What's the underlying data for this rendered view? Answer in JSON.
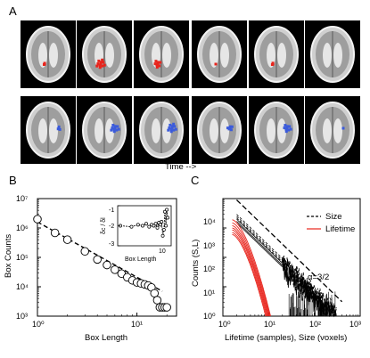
{
  "panel_labels": {
    "a": "A",
    "b": "B",
    "c": "C"
  },
  "time_caption": "Time -->",
  "brain_grid": {
    "rows": [
      {
        "color": "#e8241c",
        "blob_sizes": [
          0.18,
          0.75,
          0.6,
          0.05,
          0.2,
          0.0
        ]
      },
      {
        "color": "#3b5bdb",
        "blob_sizes": [
          0.3,
          0.7,
          0.75,
          0.45,
          0.65,
          0.1
        ]
      }
    ]
  },
  "chart_data": [
    {
      "type": "scatter",
      "panel": "B",
      "xlabel": "Box Length",
      "ylabel": "Box Counts",
      "xscale": "log",
      "yscale": "log",
      "xlim": [
        1,
        25
      ],
      "ylim": [
        1000,
        10000000
      ],
      "x_ticks": [
        "10⁰",
        "10¹"
      ],
      "y_ticks": [
        "10³",
        "10⁴",
        "10⁵",
        "10⁶",
        "10⁷"
      ],
      "series": [
        {
          "marker": "open-circle",
          "x": [
            1,
            1.5,
            2,
            3,
            4,
            5,
            6,
            7,
            8,
            9,
            10,
            11,
            12,
            13,
            14,
            15,
            16,
            17,
            18,
            19,
            20
          ],
          "y": [
            2000000,
            680000,
            400000,
            160000,
            85000,
            55000,
            38000,
            28000,
            21000,
            16500,
            14000,
            13000,
            12000,
            11000,
            9500,
            6000,
            3500,
            2000,
            2000,
            2000,
            2000
          ]
        },
        {
          "style": "dashed-fit",
          "x": [
            1,
            18
          ],
          "y": [
            1600000,
            7000
          ]
        }
      ],
      "inset": {
        "xlabel": "Box Length",
        "ylabel": "δc / δl",
        "y_ticks": [
          "-1",
          "-2",
          "-3"
        ],
        "x_ticks": [
          "10"
        ],
        "ylim": [
          -3,
          -1
        ],
        "series": [
          {
            "x": [
              1,
              2,
              3,
              4,
              5,
              6,
              7,
              8,
              9,
              10,
              11,
              12,
              13,
              14,
              15,
              16,
              17,
              18,
              19
            ],
            "y": [
              -2.0,
              -2.05,
              -1.95,
              -2.0,
              -1.9,
              -2.05,
              -1.95,
              -2.0,
              -1.9,
              -2.1,
              -1.85,
              -1.95,
              -1.8,
              -2.5,
              -2.2,
              -1.3,
              -2.0,
              -1.2,
              -1.6
            ]
          }
        ]
      }
    },
    {
      "type": "line",
      "panel": "C",
      "xlabel": "Lifetime (samples), Size (voxels)",
      "ylabel": "Counts (S,L)",
      "xscale": "log",
      "yscale": "log",
      "xlim": [
        1,
        1000
      ],
      "ylim": [
        1,
        10000
      ],
      "x_ticks": [
        "10⁰",
        "10¹",
        "10²",
        "10³"
      ],
      "y_ticks": [
        "10⁰",
        "10¹",
        "10²",
        "10³",
        "10⁴"
      ],
      "legend": {
        "position": "top-right",
        "entries": [
          "Size",
          "Lifetime"
        ]
      },
      "annotation": "α=3/2",
      "reference_line": {
        "slope": -1.5,
        "x": [
          2,
          400
        ],
        "y": [
          9000,
          3.1
        ]
      },
      "series": [
        {
          "name": "Size",
          "color": "#000000",
          "style": "dashed",
          "decay_exponent": 1.5,
          "x_range": [
            2,
            300
          ],
          "y_at_start": [
            2900,
            2500,
            2200,
            2000,
            1700,
            1500
          ]
        },
        {
          "name": "Lifetime",
          "color": "#e8241c",
          "style": "solid",
          "x_range": [
            1.6,
            11
          ],
          "y_at_start": [
            1900,
            1500,
            1200,
            1000,
            850,
            700,
            600
          ]
        }
      ]
    }
  ]
}
